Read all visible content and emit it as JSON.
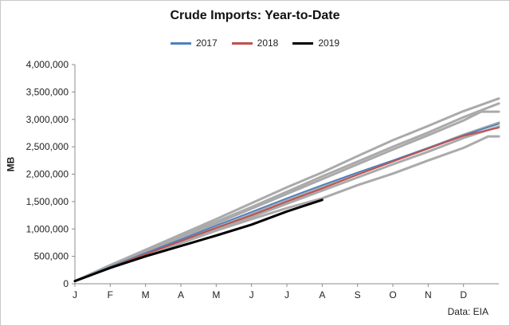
{
  "chart_data": {
    "type": "line",
    "title": "Crude Imports: Year-to-Date",
    "ylabel": "MB",
    "xlabel": "",
    "source": "Data: EIA",
    "ylim": [
      0,
      4000000
    ],
    "yticks": [
      0,
      500000,
      1000000,
      1500000,
      2000000,
      2500000,
      3000000,
      3500000,
      4000000
    ],
    "ytick_labels": [
      "0",
      "500,000",
      "1,000,000",
      "1,500,000",
      "2,000,000",
      "2,500,000",
      "3,000,000",
      "3,500,000",
      "4,000,000"
    ],
    "xlim": [
      0,
      12
    ],
    "xticks": [
      0,
      1,
      2,
      3,
      4,
      5,
      6,
      7,
      8,
      9,
      10,
      11
    ],
    "xtick_labels": [
      "J",
      "F",
      "M",
      "A",
      "M",
      "J",
      "J",
      "A",
      "S",
      "O",
      "N",
      "D"
    ],
    "legend_position": "top-center",
    "grid": false,
    "series": [
      {
        "name": "",
        "color": "#aaaaaa",
        "width": 3,
        "legend": false,
        "x": [
          0,
          1,
          2,
          3,
          4,
          5,
          6,
          7,
          8,
          9,
          10,
          11,
          12
        ],
        "y": [
          50000,
          340000,
          620000,
          900000,
          1180000,
          1470000,
          1760000,
          2030000,
          2330000,
          2620000,
          2880000,
          3150000,
          3380000
        ]
      },
      {
        "name": "",
        "color": "#aaaaaa",
        "width": 3,
        "legend": false,
        "x": [
          0,
          1,
          2,
          3,
          4,
          5,
          6,
          7,
          8,
          9,
          10,
          11,
          12
        ],
        "y": [
          50000,
          330000,
          600000,
          870000,
          1130000,
          1400000,
          1680000,
          1960000,
          2230000,
          2500000,
          2760000,
          3040000,
          3290000
        ]
      },
      {
        "name": "",
        "color": "#aaaaaa",
        "width": 3,
        "legend": false,
        "x": [
          0,
          1,
          2,
          3,
          4,
          5,
          6,
          7,
          8,
          9,
          10,
          11,
          11.5,
          12
        ],
        "y": [
          50000,
          320000,
          580000,
          850000,
          1100000,
          1370000,
          1640000,
          1910000,
          2180000,
          2450000,
          2710000,
          2980000,
          3140000,
          3140000
        ]
      },
      {
        "name": "",
        "color": "#aaaaaa",
        "width": 3,
        "legend": false,
        "x": [
          0,
          1,
          2,
          3,
          4,
          5,
          6,
          7,
          8,
          9,
          10,
          11,
          12
        ],
        "y": [
          50000,
          300000,
          540000,
          780000,
          1020000,
          1270000,
          1520000,
          1760000,
          2000000,
          2240000,
          2470000,
          2720000,
          2940000
        ]
      },
      {
        "name": "",
        "color": "#aaaaaa",
        "width": 3,
        "legend": false,
        "x": [
          0,
          1,
          2,
          3,
          4,
          5,
          6,
          7,
          8,
          9,
          10,
          11,
          12
        ],
        "y": [
          50000,
          290000,
          520000,
          750000,
          980000,
          1220000,
          1460000,
          1700000,
          1940000,
          2180000,
          2410000,
          2660000,
          2870000
        ]
      },
      {
        "name": "",
        "color": "#aaaaaa",
        "width": 3,
        "legend": false,
        "x": [
          0,
          1,
          2,
          3,
          4,
          5,
          6,
          7,
          8,
          9,
          10,
          11,
          11.7,
          12
        ],
        "y": [
          50000,
          290000,
          520000,
          740000,
          970000,
          1180000,
          1380000,
          1560000,
          1800000,
          2010000,
          2250000,
          2480000,
          2690000,
          2690000
        ]
      },
      {
        "name": "2017",
        "color": "#4f81bd",
        "width": 2,
        "legend": true,
        "x": [
          0,
          1,
          2,
          3,
          4,
          5,
          6,
          7,
          8,
          9,
          10,
          11,
          12
        ],
        "y": [
          50000,
          310000,
          560000,
          810000,
          1060000,
          1310000,
          1560000,
          1800000,
          2030000,
          2250000,
          2480000,
          2710000,
          2920000
        ]
      },
      {
        "name": "2018",
        "color": "#c0504d",
        "width": 2,
        "legend": true,
        "x": [
          0,
          1,
          2,
          3,
          4,
          5,
          6,
          7,
          8,
          9,
          10,
          11,
          12
        ],
        "y": [
          50000,
          300000,
          540000,
          780000,
          1020000,
          1250000,
          1500000,
          1740000,
          1990000,
          2230000,
          2470000,
          2700000,
          2850000
        ]
      },
      {
        "name": "2019",
        "color": "#000000",
        "width": 3,
        "legend": true,
        "x": [
          0,
          1,
          2,
          3,
          4,
          5,
          6,
          7
        ],
        "y": [
          50000,
          290000,
          500000,
          690000,
          880000,
          1080000,
          1320000,
          1530000
        ]
      }
    ]
  }
}
